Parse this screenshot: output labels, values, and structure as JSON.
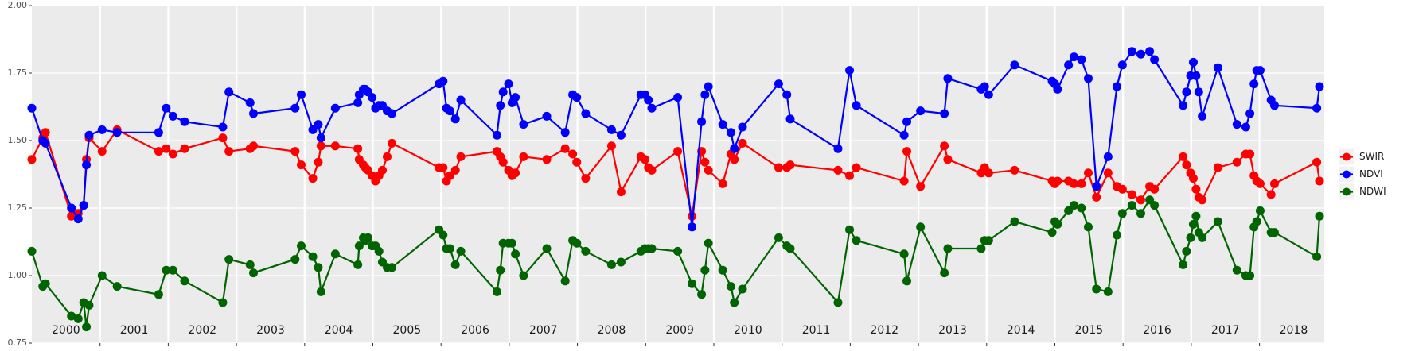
{
  "chart_data": {
    "type": "line",
    "legend": "right",
    "grid": true,
    "xlim": [
      2000,
      2018.95
    ],
    "ylim": [
      0.75,
      2.0
    ],
    "yticks": [
      {
        "value": 0.75,
        "label": "0.75"
      },
      {
        "value": 1.0,
        "label": "1.00"
      },
      {
        "value": 1.25,
        "label": "1.25"
      },
      {
        "value": 1.5,
        "label": "1.50"
      },
      {
        "value": 1.75,
        "label": "1.75"
      },
      {
        "value": 2.0,
        "label": "2.00"
      }
    ],
    "xticks": [
      {
        "value": 2000.5,
        "label": "2000"
      },
      {
        "value": 2001.5,
        "label": "2001"
      },
      {
        "value": 2002.5,
        "label": "2002"
      },
      {
        "value": 2003.5,
        "label": "2003"
      },
      {
        "value": 2004.5,
        "label": "2004"
      },
      {
        "value": 2005.5,
        "label": "2005"
      },
      {
        "value": 2006.5,
        "label": "2006"
      },
      {
        "value": 2007.5,
        "label": "2007"
      },
      {
        "value": 2008.5,
        "label": "2008"
      },
      {
        "value": 2009.5,
        "label": "2009"
      },
      {
        "value": 2010.5,
        "label": "2010"
      },
      {
        "value": 2011.5,
        "label": "2011"
      },
      {
        "value": 2012.5,
        "label": "2012"
      },
      {
        "value": 2013.5,
        "label": "2013"
      },
      {
        "value": 2014.5,
        "label": "2014"
      },
      {
        "value": 2015.5,
        "label": "2015"
      },
      {
        "value": 2016.5,
        "label": "2016"
      },
      {
        "value": 2017.5,
        "label": "2017"
      },
      {
        "value": 2018.5,
        "label": "2018"
      }
    ],
    "x": [
      2000.0,
      2000.16,
      2000.2,
      2000.58,
      2000.68,
      2000.76,
      2000.8,
      2000.84,
      2001.03,
      2001.25,
      2001.86,
      2001.97,
      2002.07,
      2002.24,
      2002.8,
      2002.89,
      2003.2,
      2003.25,
      2003.86,
      2003.95,
      2004.12,
      2004.2,
      2004.24,
      2004.45,
      2004.78,
      2004.8,
      2004.86,
      2004.89,
      2004.93,
      2004.99,
      2005.04,
      2005.09,
      2005.14,
      2005.21,
      2005.28,
      2005.97,
      2006.03,
      2006.08,
      2006.13,
      2006.21,
      2006.29,
      2006.82,
      2006.87,
      2006.91,
      2006.99,
      2007.04,
      2007.09,
      2007.21,
      2007.55,
      2007.82,
      2007.93,
      2007.99,
      2008.12,
      2008.5,
      2008.64,
      2008.93,
      2008.99,
      2009.04,
      2009.09,
      2009.47,
      2009.68,
      2009.82,
      2009.87,
      2009.92,
      2010.13,
      2010.25,
      2010.3,
      2010.42,
      2010.95,
      2011.07,
      2011.12,
      2011.82,
      2011.99,
      2012.09,
      2012.79,
      2012.83,
      2013.03,
      2013.38,
      2013.43,
      2013.92,
      2013.97,
      2014.03,
      2014.41,
      2014.96,
      2015.0,
      2015.04,
      2015.2,
      2015.28,
      2015.39,
      2015.49,
      2015.61,
      2015.78,
      2015.91,
      2015.99,
      2016.13,
      2016.26,
      2016.39,
      2016.46,
      2016.88,
      2016.93,
      2016.99,
      2017.03,
      2017.07,
      2017.11,
      2017.16,
      2017.39,
      2017.67,
      2017.8,
      2017.86,
      2017.92,
      2017.96,
      2018.01,
      2018.17,
      2018.22,
      2018.84,
      2018.88
    ],
    "series": [
      {
        "name": "SWIR",
        "color": "#ff0000",
        "values": [
          1.43,
          1.51,
          1.53,
          1.22,
          1.23,
          1.26,
          1.43,
          1.51,
          1.46,
          1.54,
          1.46,
          1.47,
          1.45,
          1.47,
          1.51,
          1.46,
          1.47,
          1.48,
          1.46,
          1.41,
          1.36,
          1.42,
          1.48,
          1.48,
          1.47,
          1.43,
          1.41,
          1.4,
          1.39,
          1.37,
          1.35,
          1.37,
          1.39,
          1.44,
          1.49,
          1.4,
          1.4,
          1.35,
          1.37,
          1.39,
          1.44,
          1.46,
          1.44,
          1.42,
          1.39,
          1.37,
          1.38,
          1.44,
          1.43,
          1.47,
          1.45,
          1.42,
          1.36,
          1.48,
          1.31,
          1.44,
          1.43,
          1.4,
          1.39,
          1.46,
          1.22,
          1.46,
          1.42,
          1.39,
          1.34,
          1.45,
          1.43,
          1.49,
          1.4,
          1.4,
          1.41,
          1.39,
          1.37,
          1.4,
          1.35,
          1.46,
          1.33,
          1.48,
          1.43,
          1.38,
          1.4,
          1.38,
          1.39,
          1.35,
          1.34,
          1.35,
          1.35,
          1.34,
          1.34,
          1.38,
          1.29,
          1.38,
          1.33,
          1.32,
          1.3,
          1.28,
          1.33,
          1.32,
          1.44,
          1.41,
          1.38,
          1.36,
          1.32,
          1.29,
          1.28,
          1.4,
          1.42,
          1.45,
          1.45,
          1.37,
          1.35,
          1.34,
          1.3,
          1.34,
          1.42,
          1.35
        ]
      },
      {
        "name": "NDVI",
        "color": "#0000ff",
        "values": [
          1.62,
          1.5,
          1.49,
          1.25,
          1.21,
          1.26,
          1.41,
          1.52,
          1.54,
          1.53,
          1.53,
          1.62,
          1.59,
          1.57,
          1.55,
          1.68,
          1.64,
          1.6,
          1.62,
          1.67,
          1.54,
          1.56,
          1.51,
          1.62,
          1.64,
          1.67,
          1.69,
          1.69,
          1.68,
          1.66,
          1.62,
          1.63,
          1.63,
          1.61,
          1.6,
          1.71,
          1.72,
          1.62,
          1.61,
          1.58,
          1.65,
          1.52,
          1.63,
          1.68,
          1.71,
          1.64,
          1.66,
          1.56,
          1.59,
          1.53,
          1.67,
          1.66,
          1.6,
          1.54,
          1.52,
          1.67,
          1.67,
          1.65,
          1.62,
          1.66,
          1.18,
          1.57,
          1.67,
          1.7,
          1.56,
          1.53,
          1.47,
          1.55,
          1.71,
          1.67,
          1.58,
          1.47,
          1.76,
          1.63,
          1.52,
          1.57,
          1.61,
          1.6,
          1.73,
          1.69,
          1.7,
          1.67,
          1.78,
          1.72,
          1.71,
          1.69,
          1.78,
          1.81,
          1.8,
          1.73,
          1.33,
          1.44,
          1.7,
          1.78,
          1.83,
          1.82,
          1.83,
          1.8,
          1.63,
          1.68,
          1.74,
          1.79,
          1.74,
          1.68,
          1.59,
          1.77,
          1.56,
          1.55,
          1.6,
          1.71,
          1.76,
          1.76,
          1.65,
          1.63,
          1.62,
          1.7
        ]
      },
      {
        "name": "NDWI",
        "color": "#006400",
        "values": [
          1.09,
          0.96,
          0.97,
          0.85,
          0.84,
          0.9,
          0.81,
          0.89,
          1.0,
          0.96,
          0.93,
          1.02,
          1.02,
          0.98,
          0.9,
          1.06,
          1.04,
          1.01,
          1.06,
          1.11,
          1.07,
          1.03,
          0.94,
          1.08,
          1.04,
          1.11,
          1.14,
          1.13,
          1.14,
          1.11,
          1.11,
          1.09,
          1.05,
          1.03,
          1.03,
          1.17,
          1.15,
          1.1,
          1.1,
          1.04,
          1.09,
          0.94,
          1.02,
          1.12,
          1.12,
          1.12,
          1.08,
          1.0,
          1.1,
          0.98,
          1.13,
          1.12,
          1.09,
          1.04,
          1.05,
          1.09,
          1.1,
          1.1,
          1.1,
          1.09,
          0.97,
          0.93,
          1.02,
          1.12,
          1.02,
          0.96,
          0.9,
          0.95,
          1.14,
          1.11,
          1.1,
          0.9,
          1.17,
          1.13,
          1.08,
          0.98,
          1.18,
          1.01,
          1.1,
          1.1,
          1.13,
          1.13,
          1.2,
          1.16,
          1.2,
          1.19,
          1.24,
          1.26,
          1.25,
          1.18,
          0.95,
          0.94,
          1.15,
          1.23,
          1.26,
          1.23,
          1.28,
          1.26,
          1.04,
          1.09,
          1.14,
          1.19,
          1.22,
          1.16,
          1.14,
          1.2,
          1.02,
          1.0,
          1.0,
          1.18,
          1.2,
          1.24,
          1.16,
          1.16,
          1.07,
          1.22
        ]
      }
    ]
  }
}
